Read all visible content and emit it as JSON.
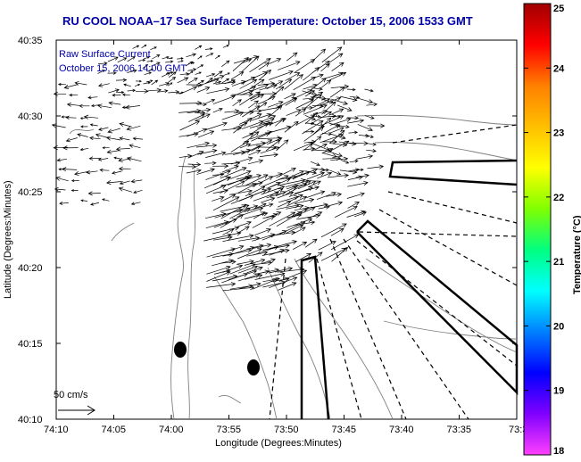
{
  "map": {
    "title": "RU COOL  NOAA–17  Sea Surface Temperature:  October 15, 2006 1533 GMT",
    "legend_line1": "Raw Surface Current",
    "legend_line2": "October 15, 2006 14:00 GMT",
    "scale_label": "50 cm/s",
    "xlabel": "Longitude (Degrees:Minutes)",
    "ylabel": "Latitude (Degrees:Minutes)",
    "x_ticks": [
      "74:10",
      "74:05",
      "74:00",
      "73:55",
      "73:50",
      "73:45",
      "73:40",
      "73:35",
      "73:3"
    ],
    "y_ticks": [
      "40:35",
      "40:30",
      "40:25",
      "40:20",
      "40:15",
      "40:10"
    ]
  },
  "colorbar": {
    "label": "Temperature (°C)",
    "min": 18,
    "max": 25,
    "ticks": [
      "25",
      "24",
      "23",
      "22",
      "21",
      "20",
      "19",
      "18"
    ],
    "stops": [
      "#ff40ff",
      "#8000ff",
      "#0000ff",
      "#0080ff",
      "#00ffff",
      "#00ff80",
      "#80ff00",
      "#ffff00",
      "#ffbf00",
      "#ff8000",
      "#ff0000",
      "#a00000"
    ]
  }
}
